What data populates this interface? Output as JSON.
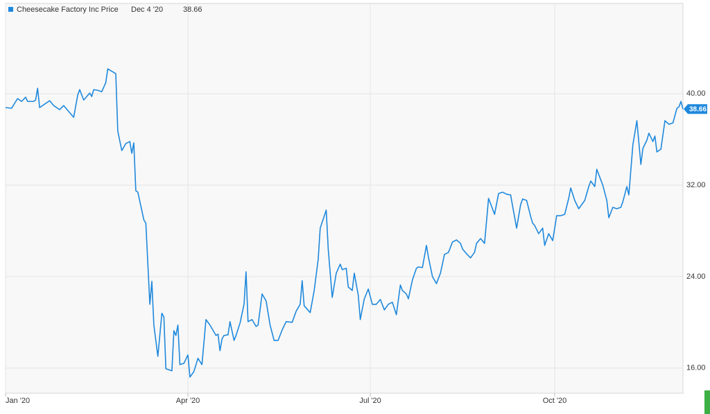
{
  "chart_data": {
    "type": "line",
    "legend_date": "Dec 4 '20",
    "x": [
      1,
      4,
      7,
      9,
      11,
      12,
      15,
      16,
      17,
      18,
      21,
      23,
      25,
      28,
      30,
      32,
      35,
      37,
      38,
      40,
      43,
      44,
      45,
      47,
      49,
      51,
      52,
      56,
      57,
      59,
      61,
      63,
      64,
      65,
      66,
      67,
      70,
      71,
      73,
      74,
      75,
      77,
      79,
      80,
      81,
      84,
      85,
      86,
      87,
      88,
      90,
      92,
      93,
      95,
      97,
      99,
      101,
      103,
      106,
      107,
      108,
      109,
      110,
      112,
      113,
      115,
      116,
      118,
      120,
      121,
      122,
      124,
      126,
      127,
      129,
      131,
      133,
      135,
      137,
      139,
      141,
      144,
      146,
      148,
      149,
      150,
      153,
      155,
      157,
      158,
      161,
      162,
      164,
      166,
      168,
      169,
      171,
      172,
      174,
      175,
      177,
      178,
      180,
      182,
      184,
      186,
      188,
      190,
      192,
      194,
      196,
      198,
      199,
      201,
      202,
      204,
      206,
      207,
      209,
      211,
      212,
      214,
      216,
      218,
      220,
      222,
      224,
      226,
      228,
      229,
      231,
      233,
      235,
      236,
      238,
      240,
      242,
      245,
      247,
      249,
      251,
      253,
      256,
      258,
      259,
      261,
      263,
      264,
      265,
      267,
      269,
      270,
      272,
      274,
      276,
      278,
      280,
      282,
      283,
      285,
      287,
      290,
      292,
      293,
      295,
      296,
      299,
      301,
      302,
      304,
      306,
      308,
      309,
      311,
      312,
      314,
      316,
      318,
      319,
      321,
      322,
      324,
      325,
      326,
      328,
      330,
      332,
      334,
      336,
      337,
      338,
      339
    ],
    "series": [
      {
        "name": "Cheesecake Factory Inc Price",
        "color": "#1e88dc",
        "values": [
          38.79,
          38.73,
          39.58,
          39.33,
          39.7,
          39.33,
          39.33,
          39.45,
          40.48,
          38.79,
          39.15,
          39.39,
          38.97,
          38.61,
          38.97,
          38.55,
          37.94,
          39.88,
          40.36,
          39.45,
          40.06,
          39.76,
          40.36,
          40.3,
          40.18,
          40.97,
          42.18,
          41.76,
          36.73,
          35.03,
          35.64,
          35.82,
          34.79,
          35.7,
          31.52,
          31.39,
          28.97,
          28.67,
          21.58,
          23.58,
          19.76,
          17.03,
          20.79,
          20.48,
          15.94,
          15.76,
          19.27,
          18.85,
          19.76,
          16.3,
          16.42,
          17.15,
          15.21,
          15.7,
          16.85,
          16.3,
          20.24,
          19.76,
          18.85,
          18.97,
          17.52,
          18.55,
          18.85,
          18.91,
          20.06,
          18.42,
          18.85,
          19.94,
          21.58,
          24.42,
          20.06,
          20.24,
          19.64,
          19.76,
          22.48,
          21.88,
          19.76,
          18.42,
          18.42,
          19.33,
          20.06,
          20.0,
          20.97,
          21.58,
          23.64,
          21.45,
          20.85,
          22.79,
          25.52,
          28.24,
          29.82,
          26.42,
          22.18,
          24.3,
          25.09,
          24.61,
          24.73,
          23.09,
          22.79,
          24.3,
          22.36,
          20.24,
          22.06,
          22.91,
          21.58,
          21.58,
          22.0,
          21.09,
          21.58,
          21.76,
          20.67,
          23.27,
          22.79,
          22.48,
          22.06,
          23.7,
          24.73,
          24.85,
          24.79,
          26.73,
          25.7,
          24.0,
          23.39,
          24.3,
          25.94,
          26.12,
          27.03,
          27.21,
          26.91,
          26.42,
          26.0,
          25.64,
          26.12,
          26.91,
          27.33,
          26.91,
          30.85,
          29.45,
          31.27,
          31.39,
          31.21,
          31.15,
          28.24,
          30.3,
          30.79,
          30.67,
          29.27,
          28.67,
          28.48,
          27.76,
          28.24,
          26.73,
          27.76,
          27.15,
          29.33,
          29.33,
          29.45,
          30.85,
          31.76,
          30.67,
          29.94,
          30.67,
          31.88,
          32.36,
          31.88,
          33.39,
          32.0,
          30.67,
          29.15,
          30.06,
          29.94,
          30.06,
          30.55,
          31.88,
          31.15,
          35.52,
          37.64,
          33.82,
          35.21,
          35.94,
          36.55,
          35.82,
          36.3,
          34.91,
          35.15,
          37.64,
          37.33,
          37.45,
          38.73,
          38.85,
          39.33,
          38.66
        ]
      }
    ],
    "xlim": [
      1,
      339
    ],
    "xticks": [
      {
        "value": 1,
        "label": "Jan '20"
      },
      {
        "value": 92,
        "label": "Apr '20"
      },
      {
        "value": 183,
        "label": "Jul '20"
      },
      {
        "value": 275,
        "label": "Oct '20"
      }
    ],
    "ylim": [
      13.8,
      47.9
    ],
    "yticks": [
      {
        "value": 16,
        "label": "16.00"
      },
      {
        "value": 24,
        "label": "24.00"
      },
      {
        "value": 32,
        "label": "32.00"
      },
      {
        "value": 40,
        "label": "40.00"
      }
    ],
    "grid": true
  }
}
